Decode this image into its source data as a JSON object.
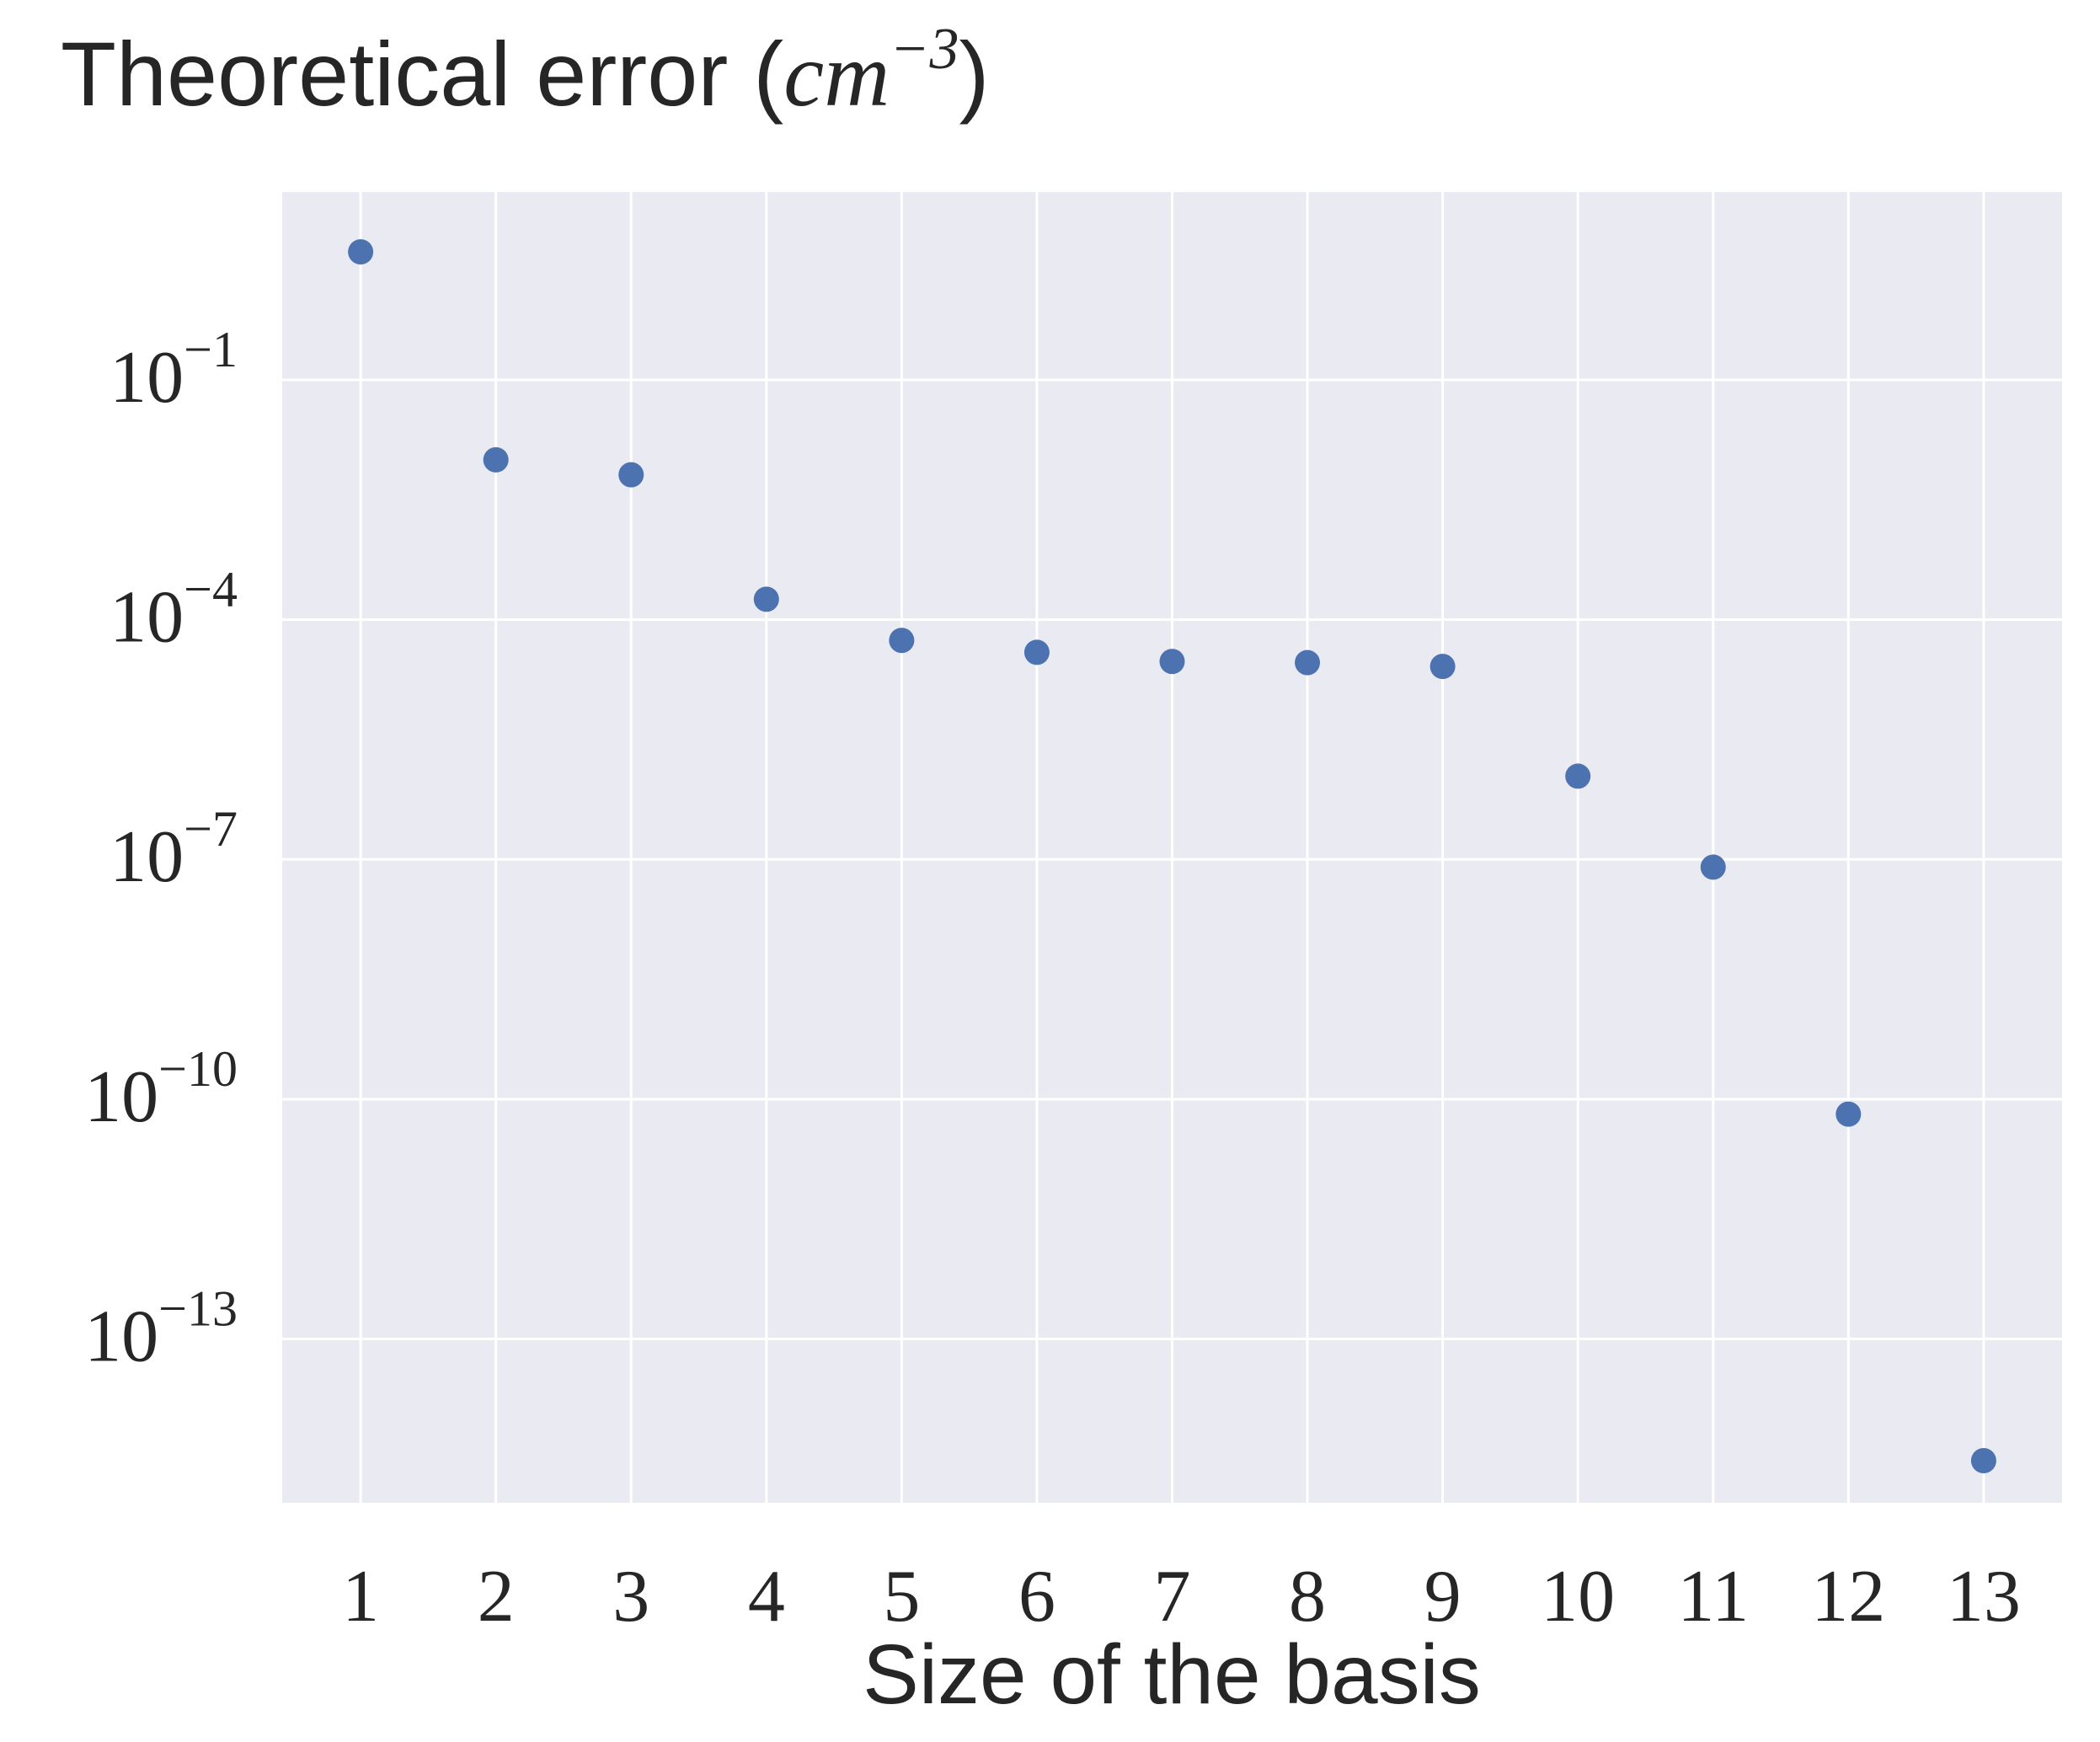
{
  "chart_data": {
    "type": "scatter",
    "title": "Theoretical error (cm^-3)",
    "title_parts": {
      "text": "Theoretical error (",
      "math_base": "cm",
      "math_exp": "−3",
      "close": ")"
    },
    "xlabel": "Size of the basis",
    "ylabel": "",
    "yscale": "log",
    "grid": true,
    "background": "#eaeaf2",
    "marker_color": "#4c72b0",
    "xlim": [
      0.42,
      13.58
    ],
    "ylim_log10": [
      -15.05,
      1.35
    ],
    "x_ticks": [
      1,
      2,
      3,
      4,
      5,
      6,
      7,
      8,
      9,
      10,
      11,
      12,
      13
    ],
    "x_tick_labels": [
      "1",
      "2",
      "3",
      "4",
      "5",
      "6",
      "7",
      "8",
      "9",
      "10",
      "11",
      "12",
      "13"
    ],
    "y_ticks": [
      {
        "base": "10",
        "exp": "−1",
        "log10": -1
      },
      {
        "base": "10",
        "exp": "−4",
        "log10": -4
      },
      {
        "base": "10",
        "exp": "−7",
        "log10": -7
      },
      {
        "base": "10",
        "exp": "−10",
        "log10": -10
      },
      {
        "base": "10",
        "exp": "−13",
        "log10": -13
      }
    ],
    "x": [
      1,
      2,
      3,
      4,
      5,
      6,
      7,
      8,
      9,
      10,
      11,
      12,
      13
    ],
    "y": [
      4.0,
      0.01,
      0.0065,
      0.00018,
      5.5e-05,
      3.9e-05,
      3e-05,
      2.9e-05,
      2.6e-05,
      1.1e-06,
      8e-08,
      6.5e-11,
      3e-15
    ]
  }
}
